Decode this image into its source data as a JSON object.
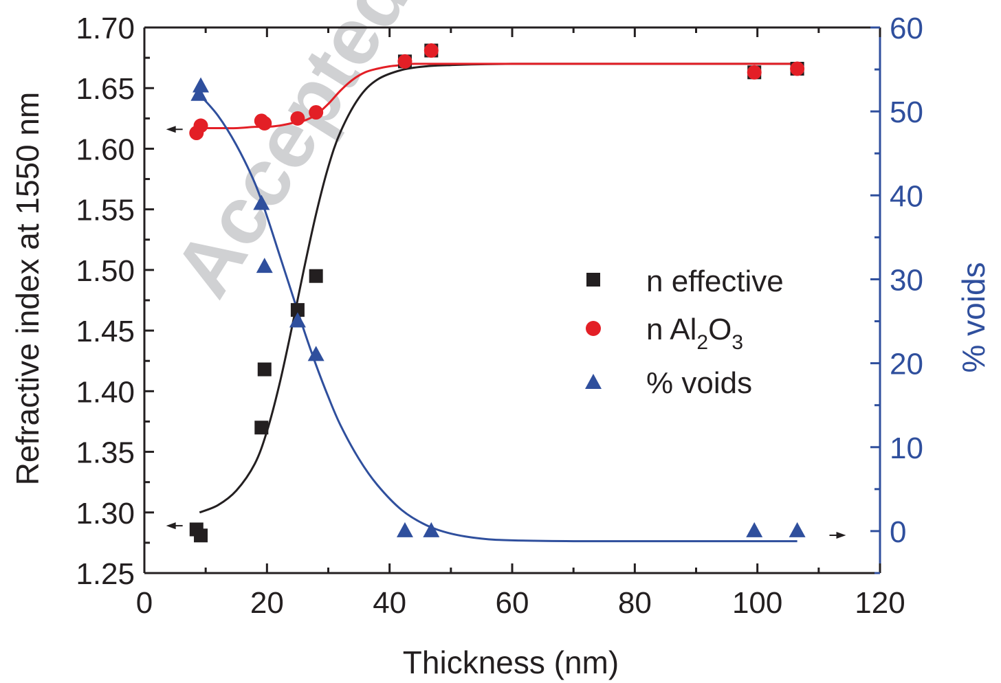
{
  "chart_data": {
    "type": "scatter",
    "watermark": "Accepted m",
    "xlabel": "Thickness (nm)",
    "ylabel_left": "Refractive index at 1550 nm",
    "ylabel_right": "% voids",
    "xlim": [
      0,
      120
    ],
    "ylim_left": [
      1.25,
      1.7
    ],
    "ylim_right": [
      -5,
      60
    ],
    "x_ticks": [
      "0",
      "20",
      "40",
      "60",
      "80",
      "100",
      "120"
    ],
    "y_left_ticks": [
      "1.25",
      "1.30",
      "1.35",
      "1.40",
      "1.45",
      "1.50",
      "1.55",
      "1.60",
      "1.65",
      "1.70"
    ],
    "y_right_ticks": [
      "0",
      "10",
      "20",
      "30",
      "40",
      "50",
      "60"
    ],
    "legend_position": "center-right",
    "colors": {
      "n_effective": "#231f20",
      "n_al2o3": "#e31f26",
      "voids": "#2f4f9d",
      "right_axis": "#2f4f9d"
    },
    "legend": {
      "n_effective": "n effective",
      "n_al2o3_prefix": "n Al",
      "n_al2o3_sub1": "2",
      "n_al2o3_mid": "O",
      "n_al2o3_sub2": "3",
      "voids": "% voids"
    },
    "series": [
      {
        "name": "n effective",
        "axis": "left",
        "marker": "square",
        "x": [
          8.5,
          9.2,
          19.1,
          19.6,
          25,
          28,
          42.5,
          46.8,
          99.5,
          106.5
        ],
        "y": [
          1.286,
          1.281,
          1.37,
          1.418,
          1.467,
          1.495,
          1.672,
          1.681,
          1.663,
          1.666
        ]
      },
      {
        "name": "n Al2O3",
        "axis": "left",
        "marker": "circle",
        "x": [
          8.5,
          9.2,
          19.1,
          19.6,
          25,
          28,
          42.5,
          46.8,
          99.5,
          106.5
        ],
        "y": [
          1.613,
          1.619,
          1.623,
          1.621,
          1.625,
          1.63,
          1.672,
          1.681,
          1.663,
          1.666
        ]
      },
      {
        "name": "% voids",
        "axis": "right",
        "marker": "triangle",
        "x": [
          8.9,
          9.2,
          19.1,
          19.6,
          25,
          28,
          42.5,
          46.8,
          99.5,
          106.5
        ],
        "y": [
          52,
          53,
          39,
          31.5,
          25,
          21,
          0,
          0,
          0,
          0
        ]
      }
    ],
    "fits": [
      {
        "name": "n effective fit",
        "axis": "left",
        "x": [
          9,
          12,
          15,
          18,
          20,
          22,
          24,
          26,
          28,
          30,
          32,
          35,
          38,
          42,
          46,
          50,
          60,
          80,
          106.5
        ],
        "y": [
          1.3,
          1.306,
          1.318,
          1.34,
          1.367,
          1.405,
          1.451,
          1.5,
          1.546,
          1.585,
          1.614,
          1.642,
          1.657,
          1.665,
          1.668,
          1.669,
          1.67,
          1.67,
          1.67
        ]
      },
      {
        "name": "n Al2O3 fit",
        "axis": "left",
        "x": [
          9,
          12,
          15,
          18,
          20,
          22,
          24,
          26,
          28,
          30,
          32,
          34,
          36,
          38,
          40,
          42,
          44,
          47,
          50,
          60,
          80,
          106.5
        ],
        "y": [
          1.617,
          1.617,
          1.617,
          1.618,
          1.618,
          1.619,
          1.621,
          1.623,
          1.628,
          1.637,
          1.648,
          1.657,
          1.663,
          1.666,
          1.668,
          1.669,
          1.67,
          1.67,
          1.67,
          1.67,
          1.67,
          1.67
        ]
      },
      {
        "name": "% voids fit",
        "axis": "right",
        "x": [
          9,
          12,
          15,
          18,
          20,
          22,
          24,
          26,
          28,
          30,
          32,
          35,
          38,
          42,
          46,
          50,
          55,
          60,
          70,
          80,
          106.5
        ],
        "y": [
          52,
          49.5,
          46,
          41.5,
          37.5,
          33,
          28.5,
          24,
          19.8,
          16,
          12.6,
          8.6,
          5.5,
          2.5,
          0.7,
          -0.3,
          -0.9,
          -1.1,
          -1.2,
          -1.2,
          -1.2
        ]
      }
    ],
    "arrows": [
      {
        "name": "n-al2o3-axis-arrow",
        "axis": "left",
        "direction": "left",
        "x": 4,
        "y": 1.616
      },
      {
        "name": "n-effective-axis-arrow",
        "axis": "left",
        "direction": "left",
        "x": 4,
        "y": 1.289
      },
      {
        "name": "voids-axis-arrow",
        "axis": "right",
        "direction": "right",
        "x": 114,
        "y": -0.5
      }
    ]
  }
}
